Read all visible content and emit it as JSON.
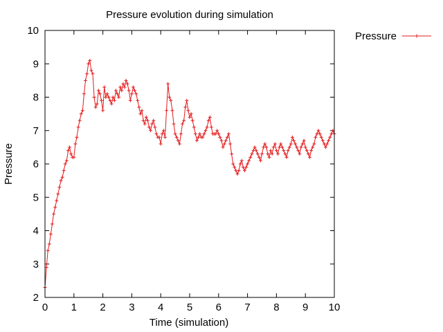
{
  "chart_data": {
    "type": "line",
    "title": "Pressure evolution during simulation",
    "xlabel": "Time (simulation)",
    "ylabel": "Pressure",
    "xlim": [
      0,
      10
    ],
    "ylim": [
      2,
      10
    ],
    "xticks": [
      0,
      1,
      2,
      3,
      4,
      5,
      6,
      7,
      8,
      9,
      10
    ],
    "yticks": [
      2,
      3,
      4,
      5,
      6,
      7,
      8,
      9,
      10
    ],
    "legend_position": "outside-top-right",
    "grid": false,
    "series": [
      {
        "name": "Pressure",
        "color": "#e41a1c",
        "marker": "plus",
        "x": [
          0.0,
          0.05,
          0.1,
          0.15,
          0.2,
          0.25,
          0.3,
          0.35,
          0.4,
          0.45,
          0.5,
          0.55,
          0.6,
          0.65,
          0.7,
          0.75,
          0.8,
          0.85,
          0.9,
          0.95,
          1.0,
          1.05,
          1.1,
          1.15,
          1.2,
          1.25,
          1.3,
          1.35,
          1.4,
          1.45,
          1.5,
          1.55,
          1.6,
          1.65,
          1.7,
          1.75,
          1.8,
          1.85,
          1.9,
          1.95,
          2.0,
          2.05,
          2.1,
          2.15,
          2.2,
          2.25,
          2.3,
          2.35,
          2.4,
          2.45,
          2.5,
          2.55,
          2.6,
          2.65,
          2.7,
          2.75,
          2.8,
          2.85,
          2.9,
          2.95,
          3.0,
          3.05,
          3.1,
          3.15,
          3.2,
          3.25,
          3.3,
          3.35,
          3.4,
          3.45,
          3.5,
          3.55,
          3.6,
          3.65,
          3.7,
          3.75,
          3.8,
          3.85,
          3.9,
          3.95,
          4.0,
          4.05,
          4.1,
          4.15,
          4.2,
          4.25,
          4.3,
          4.35,
          4.4,
          4.45,
          4.5,
          4.55,
          4.6,
          4.65,
          4.7,
          4.75,
          4.8,
          4.85,
          4.9,
          4.95,
          5.0,
          5.05,
          5.1,
          5.15,
          5.2,
          5.25,
          5.3,
          5.35,
          5.4,
          5.45,
          5.5,
          5.55,
          5.6,
          5.65,
          5.7,
          5.75,
          5.8,
          5.85,
          5.9,
          5.95,
          6.0,
          6.05,
          6.1,
          6.15,
          6.2,
          6.25,
          6.3,
          6.35,
          6.4,
          6.45,
          6.5,
          6.55,
          6.6,
          6.65,
          6.7,
          6.75,
          6.8,
          6.85,
          6.9,
          6.95,
          7.0,
          7.05,
          7.1,
          7.15,
          7.2,
          7.25,
          7.3,
          7.35,
          7.4,
          7.45,
          7.5,
          7.55,
          7.6,
          7.65,
          7.7,
          7.75,
          7.8,
          7.85,
          7.9,
          7.95,
          8.0,
          8.05,
          8.1,
          8.15,
          8.2,
          8.25,
          8.3,
          8.35,
          8.4,
          8.45,
          8.5,
          8.55,
          8.6,
          8.65,
          8.7,
          8.75,
          8.8,
          8.85,
          8.9,
          8.95,
          9.0,
          9.05,
          9.1,
          9.15,
          9.2,
          9.25,
          9.3,
          9.35,
          9.4,
          9.45,
          9.5,
          9.55,
          9.6,
          9.65,
          9.7,
          9.75,
          9.8,
          9.85,
          9.9,
          9.95,
          10.0
        ],
        "values": [
          2.3,
          2.9,
          3.4,
          3.6,
          3.9,
          4.2,
          4.5,
          4.7,
          4.9,
          5.1,
          5.3,
          5.5,
          5.6,
          5.8,
          6.0,
          6.1,
          6.4,
          6.5,
          6.3,
          6.2,
          6.2,
          6.6,
          6.8,
          7.1,
          7.3,
          7.5,
          7.6,
          8.1,
          8.5,
          8.7,
          9.0,
          9.1,
          8.8,
          8.7,
          8.0,
          7.7,
          7.8,
          8.2,
          8.1,
          7.9,
          7.6,
          8.3,
          8.0,
          8.1,
          8.0,
          7.9,
          7.8,
          8.0,
          7.9,
          8.2,
          8.1,
          8.0,
          8.3,
          8.2,
          8.4,
          8.3,
          8.5,
          8.4,
          8.2,
          7.9,
          8.1,
          8.3,
          8.2,
          8.1,
          7.9,
          7.7,
          7.5,
          7.6,
          7.3,
          7.2,
          7.4,
          7.3,
          7.1,
          7.0,
          7.2,
          7.3,
          7.1,
          6.9,
          6.8,
          6.8,
          6.6,
          6.9,
          7.0,
          6.8,
          7.6,
          8.4,
          8.0,
          7.9,
          7.6,
          7.2,
          6.9,
          6.8,
          6.7,
          6.6,
          6.9,
          7.2,
          7.3,
          7.7,
          7.9,
          7.6,
          7.4,
          7.5,
          7.3,
          7.1,
          6.9,
          6.7,
          6.8,
          6.9,
          6.8,
          6.8,
          6.9,
          7.0,
          7.1,
          7.3,
          7.4,
          7.1,
          6.9,
          6.9,
          6.9,
          7.0,
          6.9,
          6.8,
          6.7,
          6.5,
          6.6,
          6.7,
          6.8,
          6.9,
          6.6,
          6.3,
          6.0,
          5.9,
          5.8,
          5.7,
          5.8,
          6.0,
          6.1,
          5.9,
          5.8,
          5.9,
          6.0,
          6.1,
          6.2,
          6.3,
          6.4,
          6.5,
          6.4,
          6.3,
          6.2,
          6.1,
          6.3,
          6.5,
          6.6,
          6.5,
          6.3,
          6.2,
          6.4,
          6.3,
          6.5,
          6.6,
          6.4,
          6.3,
          6.5,
          6.6,
          6.5,
          6.4,
          6.3,
          6.2,
          6.4,
          6.5,
          6.6,
          6.8,
          6.7,
          6.6,
          6.5,
          6.4,
          6.3,
          6.5,
          6.6,
          6.7,
          6.5,
          6.4,
          6.3,
          6.2,
          6.4,
          6.5,
          6.6,
          6.8,
          6.9,
          7.0,
          6.9,
          6.8,
          6.7,
          6.6,
          6.5,
          6.6,
          6.7,
          6.8,
          6.9,
          7.0,
          6.9
        ]
      }
    ]
  }
}
